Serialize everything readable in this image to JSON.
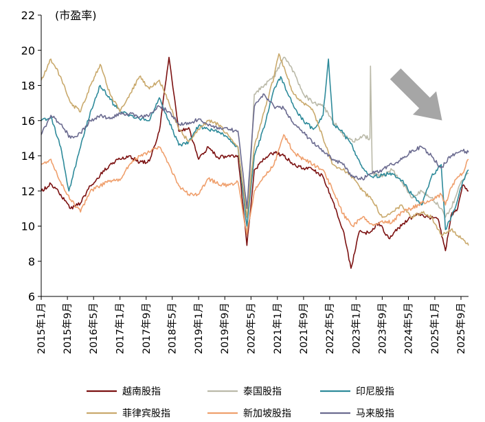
{
  "chart_data": {
    "type": "line",
    "unit_label": "(市盈率)",
    "ylim": [
      6,
      22
    ],
    "yticks": [
      6,
      8,
      10,
      12,
      14,
      16,
      18,
      20,
      22
    ],
    "x_range": [
      "2015-01-01",
      "2025-11-10"
    ],
    "x_tick_labels": [
      "2015年1月",
      "2015年9月",
      "2016年5月",
      "2017年1月",
      "2017年9月",
      "2018年5月",
      "2019年1月",
      "2019年9月",
      "2020年5月",
      "2021年1月",
      "2021年9月",
      "2022年5月",
      "2023年1月",
      "2023年9月",
      "2024年5月",
      "2025年1月",
      "2025年9月"
    ],
    "x_tick_dates": [
      "2015-01-01",
      "2015-09-01",
      "2016-05-01",
      "2017-01-01",
      "2017-09-01",
      "2018-05-01",
      "2019-01-01",
      "2019-09-01",
      "2020-05-01",
      "2021-01-01",
      "2021-09-01",
      "2022-05-01",
      "2023-01-01",
      "2023-09-01",
      "2024-05-01",
      "2025-01-01",
      "2025-09-01"
    ],
    "grid": false,
    "legend_position": "bottom",
    "annotation": "down-right-arrow",
    "annotation_color": "#a6a6a6",
    "series": [
      {
        "name": "越南股指",
        "color": "#7b1010",
        "x": [
          "2015-01-01",
          "2015-04-01",
          "2015-07-01",
          "2015-10-01",
          "2016-01-01",
          "2016-04-01",
          "2016-07-01",
          "2016-10-01",
          "2017-01-01",
          "2017-04-01",
          "2017-07-01",
          "2017-10-01",
          "2018-01-01",
          "2018-04-01",
          "2018-07-01",
          "2018-10-01",
          "2019-01-01",
          "2019-04-01",
          "2019-07-01",
          "2019-10-01",
          "2020-01-01",
          "2020-03-24",
          "2020-06-01",
          "2020-09-01",
          "2020-12-01",
          "2021-03-01",
          "2021-06-01",
          "2021-09-01",
          "2021-12-01",
          "2022-03-01",
          "2022-06-01",
          "2022-09-01",
          "2022-11-15",
          "2023-02-01",
          "2023-05-01",
          "2023-08-01",
          "2023-11-01",
          "2024-02-01",
          "2024-05-01",
          "2024-08-01",
          "2024-11-01",
          "2025-02-01",
          "2025-04-10",
          "2025-06-01",
          "2025-08-01",
          "2025-09-15",
          "2025-11-10"
        ],
        "values": [
          12.0,
          12.4,
          11.8,
          11.0,
          11.3,
          12.3,
          12.9,
          13.5,
          13.8,
          14.0,
          13.6,
          13.7,
          15.4,
          19.6,
          15.4,
          15.6,
          13.8,
          14.5,
          13.9,
          14.0,
          14.0,
          8.9,
          13.2,
          13.8,
          14.2,
          14.0,
          13.5,
          13.3,
          13.2,
          12.8,
          11.4,
          9.8,
          7.6,
          9.7,
          9.6,
          10.2,
          9.3,
          9.9,
          10.4,
          10.7,
          10.5,
          10.4,
          8.6,
          10.6,
          11.0,
          12.3,
          12.0
        ]
      },
      {
        "name": "泰国股指",
        "color": "#bab9a8",
        "x": [
          "2020-03-24",
          "2020-06-01",
          "2020-09-01",
          "2020-12-01",
          "2021-03-01",
          "2021-06-01",
          "2021-09-01",
          "2021-12-01",
          "2022-03-01",
          "2022-06-01",
          "2022-09-01",
          "2022-12-01",
          "2023-03-01",
          "2023-05-10",
          "2023-05-15",
          "2023-06-01",
          "2023-09-01",
          "2023-12-01",
          "2024-03-01",
          "2024-06-01",
          "2024-09-01",
          "2024-12-01",
          "2025-03-01",
          "2025-04-10",
          "2025-06-01",
          "2025-08-01",
          "2025-09-15",
          "2025-11-10"
        ],
        "values": [
          9.5,
          17.5,
          18.0,
          18.5,
          19.6,
          18.8,
          17.5,
          17.0,
          16.8,
          16.0,
          15.2,
          14.8,
          15.1,
          15.0,
          19.1,
          13.0,
          12.8,
          13.2,
          12.5,
          11.6,
          12.0,
          11.6,
          11.0,
          10.5,
          11.0,
          12.0,
          12.6,
          13.0
        ]
      },
      {
        "name": "印尼股指",
        "color": "#2d8a9a",
        "x": [
          "2015-01-01",
          "2015-04-01",
          "2015-07-01",
          "2015-09-15",
          "2016-01-01",
          "2016-04-01",
          "2016-07-01",
          "2016-10-01",
          "2017-01-01",
          "2017-04-01",
          "2017-07-01",
          "2017-10-01",
          "2018-01-01",
          "2018-04-01",
          "2018-07-01",
          "2018-10-01",
          "2019-01-01",
          "2019-04-01",
          "2019-07-01",
          "2019-10-01",
          "2020-01-01",
          "2020-03-24",
          "2020-06-01",
          "2020-09-01",
          "2020-12-01",
          "2021-02-01",
          "2021-06-01",
          "2021-09-01",
          "2021-12-01",
          "2022-03-01",
          "2022-04-20",
          "2022-06-01",
          "2022-09-01",
          "2022-12-01",
          "2023-03-01",
          "2023-06-01",
          "2023-09-01",
          "2023-12-01",
          "2024-03-01",
          "2024-06-01",
          "2024-09-01",
          "2024-12-01",
          "2025-03-01",
          "2025-04-10",
          "2025-06-01",
          "2025-08-01",
          "2025-09-15",
          "2025-11-10"
        ],
        "values": [
          16.0,
          16.2,
          14.5,
          12.0,
          14.5,
          16.5,
          18.0,
          17.2,
          16.5,
          16.3,
          16.1,
          16.0,
          17.3,
          16.0,
          14.6,
          14.8,
          15.7,
          15.5,
          15.4,
          15.0,
          14.5,
          10.0,
          14.0,
          15.6,
          17.8,
          18.5,
          16.8,
          16.0,
          15.5,
          16.3,
          19.5,
          15.8,
          15.3,
          14.5,
          13.3,
          12.8,
          12.9,
          13.0,
          12.6,
          11.8,
          11.2,
          12.8,
          13.5,
          9.8,
          10.5,
          11.5,
          12.5,
          13.2
        ]
      },
      {
        "name": "菲律宾股指",
        "color": "#c9a96c",
        "x": [
          "2015-01-01",
          "2015-04-01",
          "2015-07-01",
          "2015-10-01",
          "2016-01-01",
          "2016-04-01",
          "2016-07-01",
          "2016-10-01",
          "2017-01-01",
          "2017-04-01",
          "2017-07-01",
          "2017-10-01",
          "2018-01-01",
          "2018-04-01",
          "2018-07-01",
          "2018-10-01",
          "2019-01-01",
          "2019-04-01",
          "2019-07-01",
          "2019-10-01",
          "2020-01-01",
          "2020-03-24",
          "2020-06-01",
          "2020-09-01",
          "2020-12-01",
          "2021-01-15",
          "2021-06-01",
          "2021-09-01",
          "2021-12-01",
          "2022-03-01",
          "2022-06-01",
          "2022-09-01",
          "2022-12-01",
          "2023-03-01",
          "2023-06-01",
          "2023-09-01",
          "2023-12-01",
          "2024-03-01",
          "2024-06-01",
          "2024-09-01",
          "2024-12-01",
          "2025-03-01",
          "2025-06-01",
          "2025-09-01",
          "2025-11-10"
        ],
        "values": [
          18.3,
          19.5,
          18.5,
          17.0,
          16.5,
          18.0,
          19.2,
          17.5,
          16.5,
          17.5,
          18.5,
          17.8,
          18.3,
          17.0,
          15.5,
          14.8,
          15.5,
          16.0,
          15.8,
          15.2,
          14.5,
          10.5,
          14.5,
          16.5,
          18.5,
          19.8,
          17.5,
          17.0,
          16.5,
          15.0,
          13.5,
          13.2,
          12.8,
          12.0,
          11.5,
          10.5,
          10.8,
          11.2,
          10.5,
          10.8,
          10.5,
          9.5,
          9.8,
          9.3,
          8.9
        ]
      },
      {
        "name": "新加坡股指",
        "color": "#ef9f6c",
        "x": [
          "2015-01-01",
          "2015-04-01",
          "2015-07-01",
          "2015-10-01",
          "2016-01-01",
          "2016-04-01",
          "2016-07-01",
          "2016-10-01",
          "2017-01-01",
          "2017-04-01",
          "2017-07-01",
          "2017-10-01",
          "2018-01-01",
          "2018-04-01",
          "2018-07-01",
          "2018-10-01",
          "2019-01-01",
          "2019-04-01",
          "2019-07-01",
          "2019-10-01",
          "2020-01-01",
          "2020-03-24",
          "2020-06-01",
          "2020-09-01",
          "2020-12-01",
          "2021-03-01",
          "2021-06-01",
          "2021-09-01",
          "2021-12-01",
          "2022-03-01",
          "2022-06-01",
          "2022-09-01",
          "2022-12-01",
          "2023-03-01",
          "2023-06-01",
          "2023-09-01",
          "2023-12-01",
          "2024-03-01",
          "2024-06-01",
          "2024-09-01",
          "2024-12-01",
          "2025-03-01",
          "2025-04-10",
          "2025-06-01",
          "2025-08-01",
          "2025-09-15",
          "2025-11-10"
        ],
        "values": [
          13.5,
          13.8,
          12.5,
          11.5,
          10.8,
          12.0,
          12.3,
          12.6,
          12.6,
          13.5,
          14.0,
          14.2,
          14.5,
          13.5,
          12.3,
          11.8,
          11.8,
          12.7,
          12.4,
          12.3,
          12.5,
          9.5,
          12.0,
          12.8,
          13.5,
          15.2,
          14.2,
          13.8,
          13.5,
          13.2,
          12.0,
          10.7,
          10.0,
          10.5,
          10.1,
          10.3,
          10.2,
          10.8,
          11.0,
          11.3,
          11.5,
          11.8,
          11.2,
          12.2,
          12.8,
          13.0,
          13.8
        ]
      },
      {
        "name": "马来股指",
        "color": "#6a6a8f",
        "x": [
          "2015-01-01",
          "2015-04-01",
          "2015-07-01",
          "2015-10-01",
          "2016-01-01",
          "2016-04-01",
          "2016-07-01",
          "2016-10-01",
          "2017-01-01",
          "2017-04-01",
          "2017-07-01",
          "2017-10-01",
          "2018-01-01",
          "2018-04-01",
          "2018-07-01",
          "2018-10-01",
          "2019-01-01",
          "2019-04-01",
          "2019-07-01",
          "2019-10-01",
          "2020-01-01",
          "2020-03-24",
          "2020-06-01",
          "2020-09-01",
          "2020-12-01",
          "2021-03-01",
          "2021-06-01",
          "2021-09-01",
          "2021-12-01",
          "2022-03-01",
          "2022-06-01",
          "2022-09-01",
          "2022-12-01",
          "2023-03-01",
          "2023-06-01",
          "2023-09-01",
          "2023-12-01",
          "2024-03-01",
          "2024-06-01",
          "2024-09-01",
          "2024-12-01",
          "2025-03-01",
          "2025-06-01",
          "2025-09-01",
          "2025-11-10"
        ],
        "values": [
          15.2,
          16.3,
          15.8,
          15.0,
          15.3,
          16.0,
          16.3,
          16.1,
          16.4,
          16.4,
          16.2,
          16.3,
          16.8,
          16.5,
          15.8,
          15.8,
          16.1,
          15.7,
          15.6,
          15.5,
          15.4,
          11.0,
          16.8,
          17.5,
          16.8,
          16.7,
          15.8,
          15.3,
          14.7,
          14.3,
          13.8,
          13.5,
          12.8,
          12.7,
          13.0,
          13.2,
          13.5,
          13.8,
          14.3,
          14.5,
          14.0,
          13.3,
          14.0,
          14.3,
          14.2
        ]
      }
    ]
  }
}
